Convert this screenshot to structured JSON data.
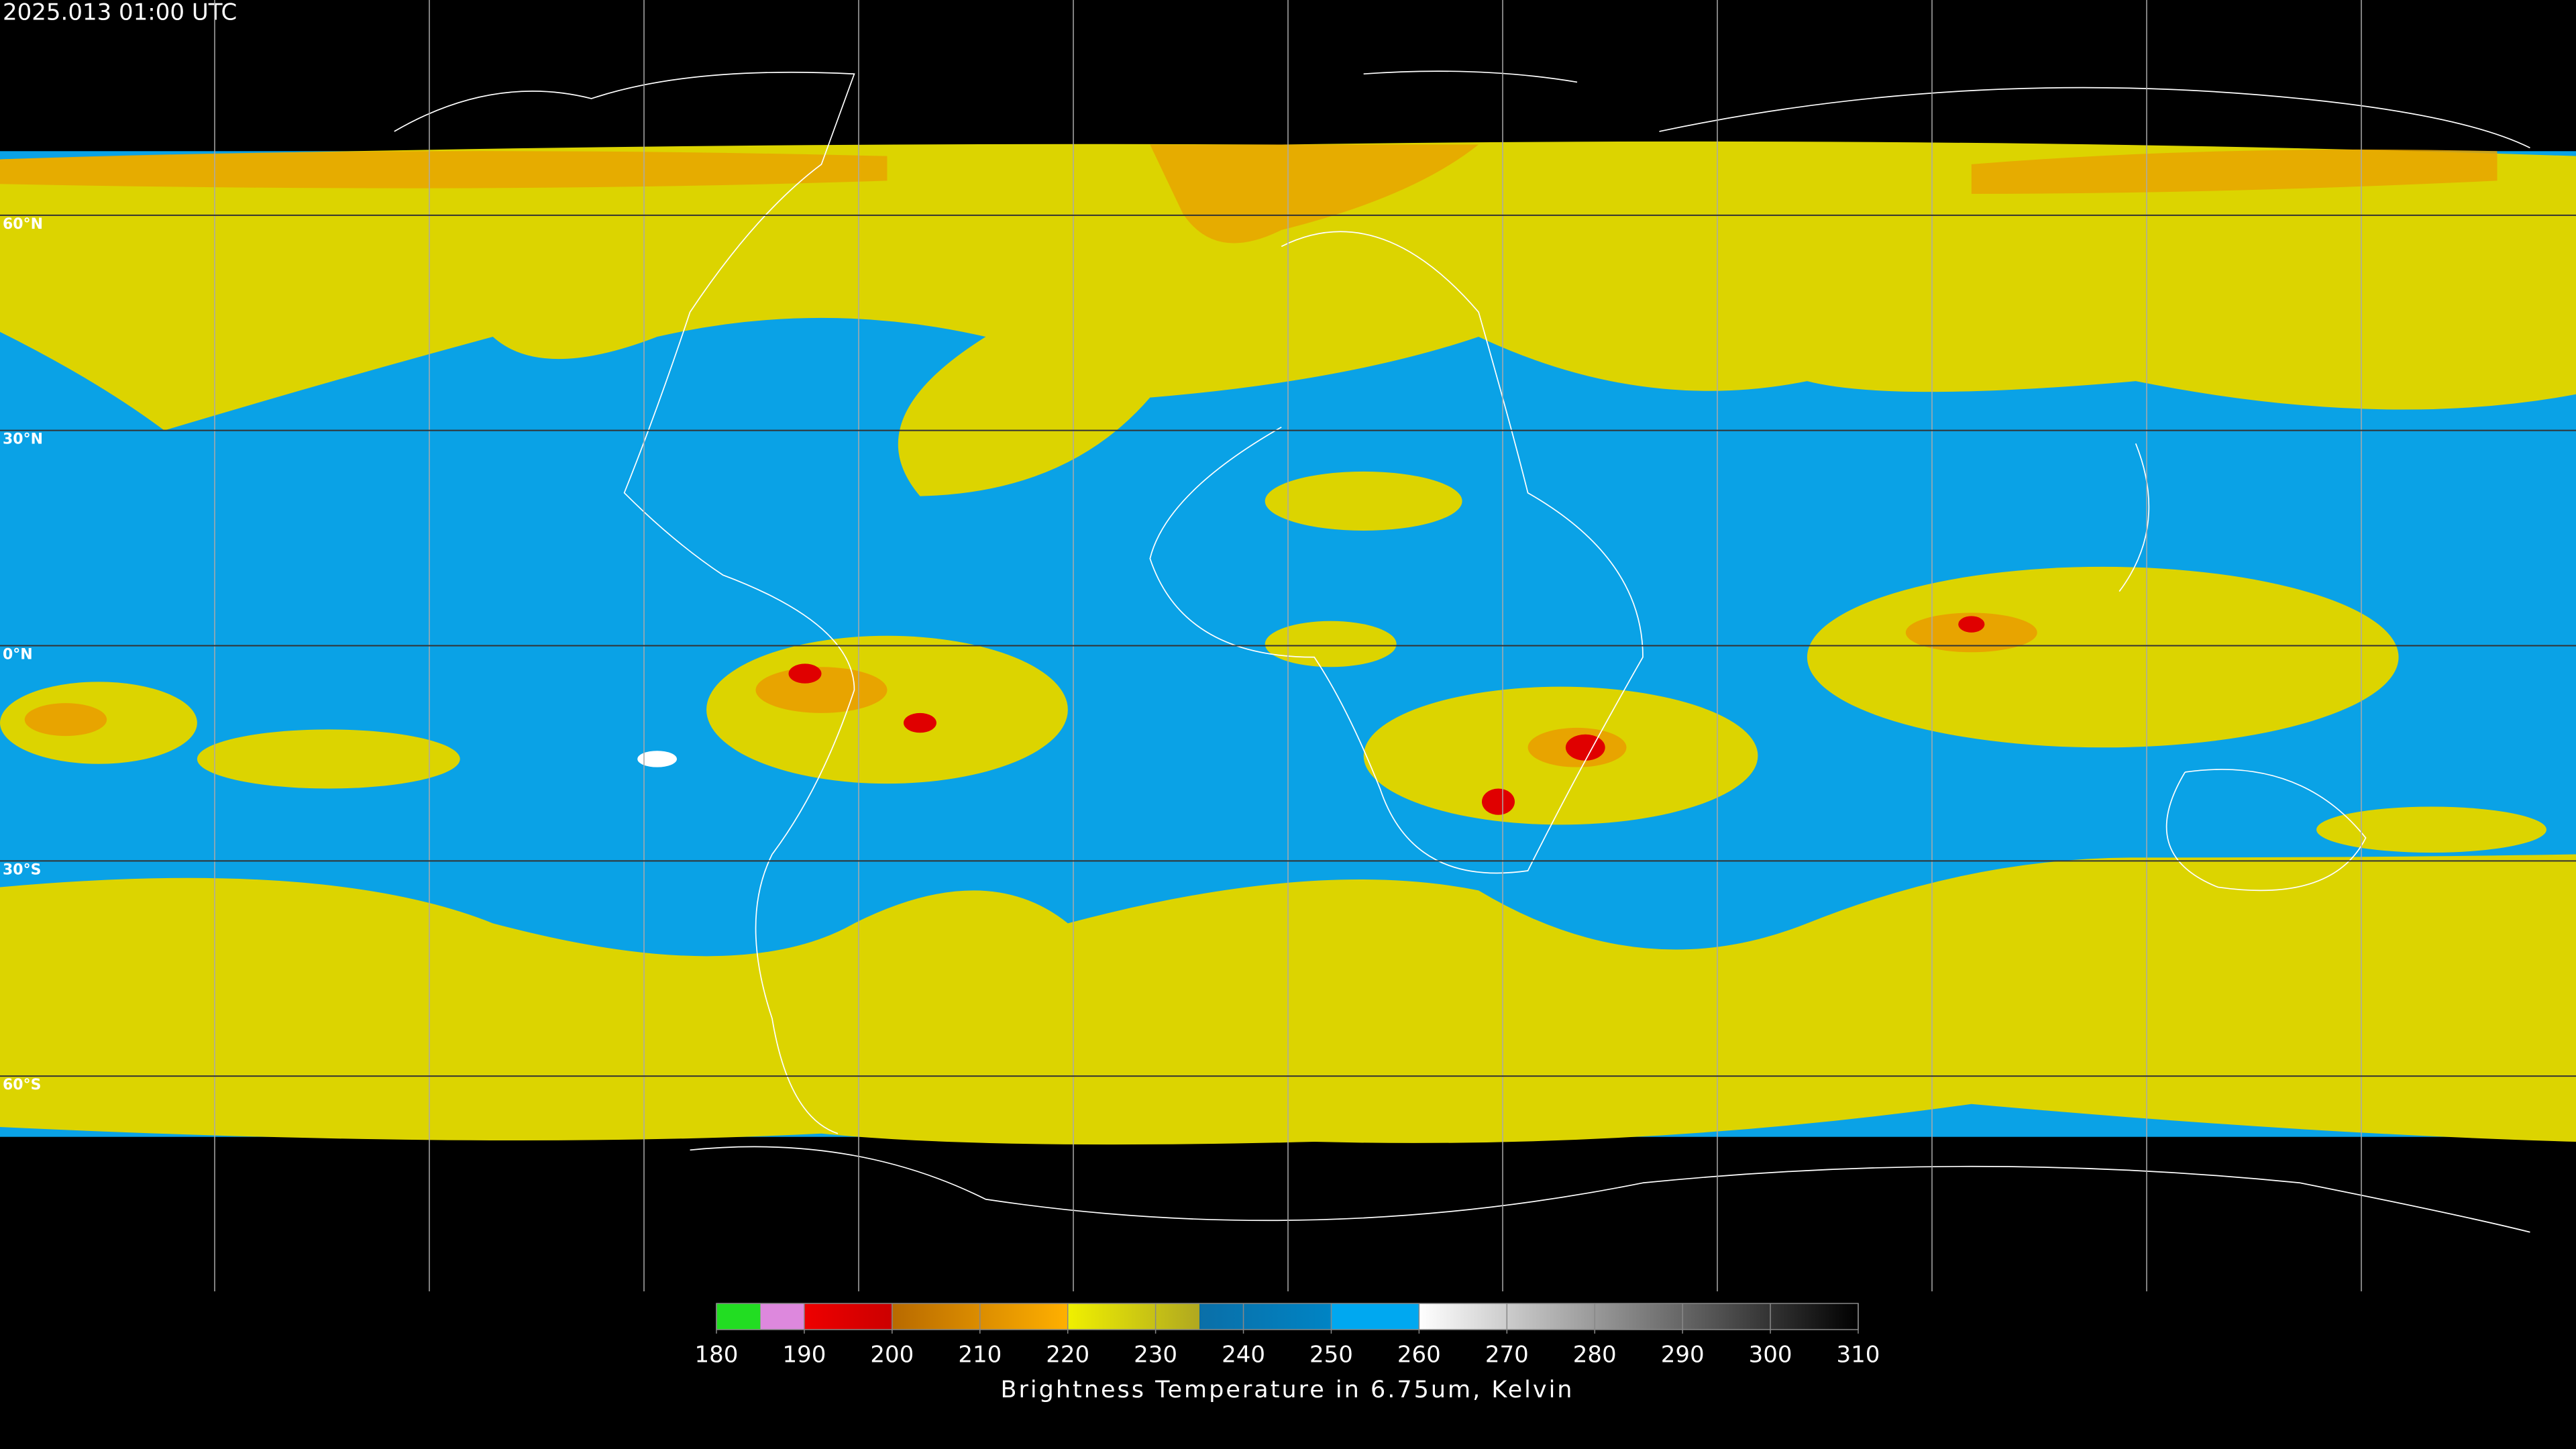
{
  "timestamp": "2025.013 01:00 UTC",
  "latitude_lines": [
    {
      "value": 60,
      "label": "60°N"
    },
    {
      "value": 30,
      "label": "30°N"
    },
    {
      "value": 0,
      "label": "0°N"
    },
    {
      "value": -30,
      "label": "30°S"
    },
    {
      "value": -60,
      "label": "60°S"
    }
  ],
  "colorbar": {
    "title": "Brightness Temperature in 6.75um, Kelvin",
    "xlim": [
      180,
      310
    ],
    "ticks": [
      180,
      190,
      200,
      210,
      220,
      230,
      240,
      250,
      260,
      270,
      280,
      290,
      300,
      310
    ],
    "segments": [
      {
        "from": 180,
        "to": 185,
        "color_start": "#22dd22",
        "color_end": "#22dd22"
      },
      {
        "from": 185,
        "to": 190,
        "color_start": "#dd88dd",
        "color_end": "#dd88dd"
      },
      {
        "from": 190,
        "to": 200,
        "color_start": "#ee0000",
        "color_end": "#cc0000"
      },
      {
        "from": 200,
        "to": 220,
        "color_start": "#b86a00",
        "color_end": "#ffb000"
      },
      {
        "from": 220,
        "to": 235,
        "color_start": "#f0f000",
        "color_end": "#b0a820"
      },
      {
        "from": 235,
        "to": 250,
        "color_start": "#0a6fa8",
        "color_end": "#0084c4"
      },
      {
        "from": 250,
        "to": 260,
        "color_start": "#00a8f0",
        "color_end": "#00a8f0"
      },
      {
        "from": 260,
        "to": 310,
        "color_start": "#ffffff",
        "color_end": "#000000"
      }
    ]
  }
}
